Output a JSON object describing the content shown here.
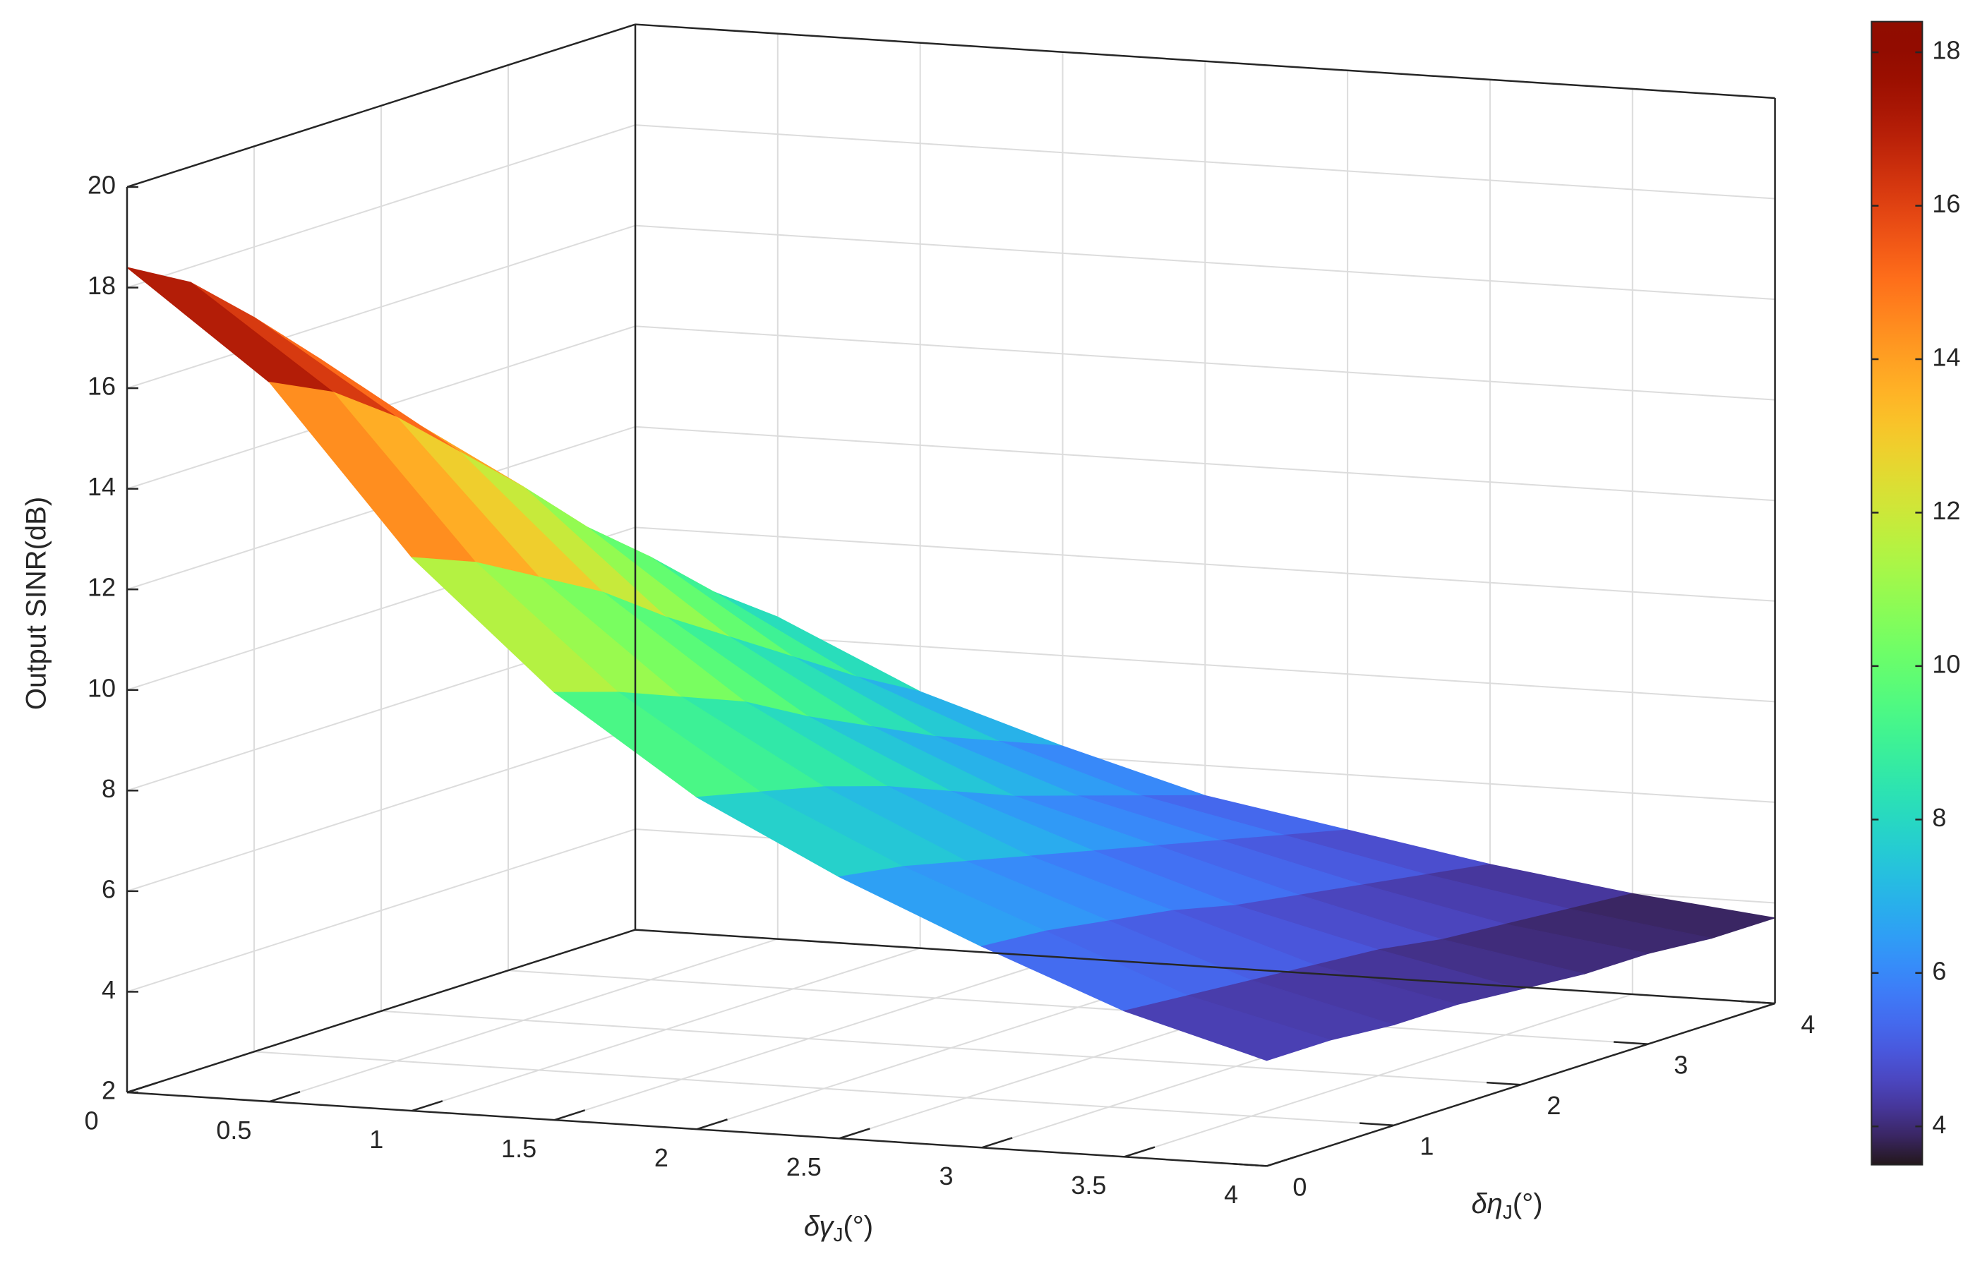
{
  "chart_data": {
    "type": "surface",
    "zlabel": "Output SINR(dB)",
    "xlabel": [
      "δγ",
      "J",
      "(°)"
    ],
    "ylabel": [
      "δη",
      "J",
      "(°)"
    ],
    "x": [
      0,
      0.5,
      1,
      1.5,
      2,
      2.5,
      3,
      3.5,
      4
    ],
    "y": [
      0,
      0.5,
      1,
      1.5,
      2,
      2.5,
      3,
      3.5,
      4
    ],
    "z": [
      [
        18.4,
        16.3,
        13.0,
        10.5,
        8.6,
        7.2,
        6.0,
        4.9,
        4.1
      ],
      [
        17.7,
        15.7,
        12.5,
        10.1,
        8.3,
        7.0,
        5.9,
        4.8,
        4.1
      ],
      [
        16.6,
        14.8,
        11.8,
        9.6,
        8.0,
        6.7,
        5.7,
        4.7,
        4.0
      ],
      [
        15.4,
        13.7,
        11.1,
        9.1,
        7.6,
        6.4,
        5.5,
        4.6,
        4.0
      ],
      [
        14.1,
        12.6,
        10.2,
        8.4,
        7.1,
        6.1,
        5.2,
        4.5,
        3.9
      ],
      [
        12.7,
        11.4,
        9.4,
        7.8,
        6.6,
        5.8,
        5.0,
        4.3,
        3.8
      ],
      [
        11.5,
        10.4,
        8.6,
        7.2,
        6.2,
        5.5,
        4.8,
        4.2,
        3.8
      ],
      [
        10.3,
        9.3,
        7.8,
        6.7,
        5.8,
        5.2,
        4.6,
        4.1,
        3.7
      ],
      [
        9.3,
        8.4,
        7.1,
        6.2,
        5.4,
        4.9,
        4.4,
        4.0,
        3.7
      ]
    ],
    "xlim": [
      0,
      4
    ],
    "ylim": [
      0,
      4
    ],
    "zlim": [
      2,
      20
    ],
    "xticks": [
      0,
      0.5,
      1,
      1.5,
      2,
      2.5,
      3,
      3.5,
      4
    ],
    "yticks": [
      0,
      1,
      2,
      3,
      4
    ],
    "zticks": [
      2,
      4,
      6,
      8,
      10,
      12,
      14,
      16,
      18,
      20
    ],
    "colormap": "turbo",
    "clim": [
      3.5,
      18.4
    ],
    "colorbar_ticks": [
      4,
      6,
      8,
      10,
      12,
      14,
      16,
      18
    ],
    "grid": true
  }
}
